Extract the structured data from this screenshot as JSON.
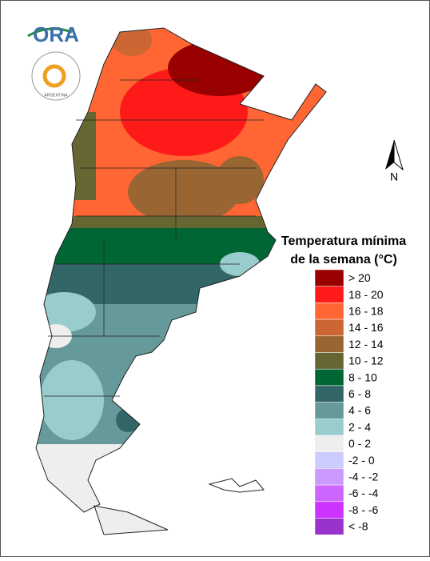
{
  "logo": {
    "text": "ORA",
    "seal_text": "ARGENTINA"
  },
  "north_arrow": {
    "label": "N"
  },
  "legend": {
    "title_lines": [
      "Temperatura mínima",
      "de la semana (°C)"
    ],
    "items": [
      {
        "label": "> 20",
        "color": "#990000"
      },
      {
        "label": "18 - 20",
        "color": "#ff1a1a"
      },
      {
        "label": "16 - 18",
        "color": "#ff6633"
      },
      {
        "label": "14 - 16",
        "color": "#cc6633"
      },
      {
        "label": "12 - 14",
        "color": "#996633"
      },
      {
        "label": "10 - 12",
        "color": "#666633"
      },
      {
        "label": "8 - 10",
        "color": "#006633"
      },
      {
        "label": "6 - 8",
        "color": "#336666"
      },
      {
        "label": "4 - 6",
        "color": "#669999"
      },
      {
        "label": "2 - 4",
        "color": "#99cccc"
      },
      {
        "label": "0 - 2",
        "color": "#eeeeee"
      },
      {
        "label": "-2 - 0",
        "color": "#ccccff"
      },
      {
        "label": "-4 - -2",
        "color": "#cc99ff"
      },
      {
        "label": "-6 - -4",
        "color": "#cc66ff"
      },
      {
        "label": "-8 - -6",
        "color": "#cc33ff"
      },
      {
        "label": "< -8",
        "color": "#9933cc"
      }
    ]
  }
}
